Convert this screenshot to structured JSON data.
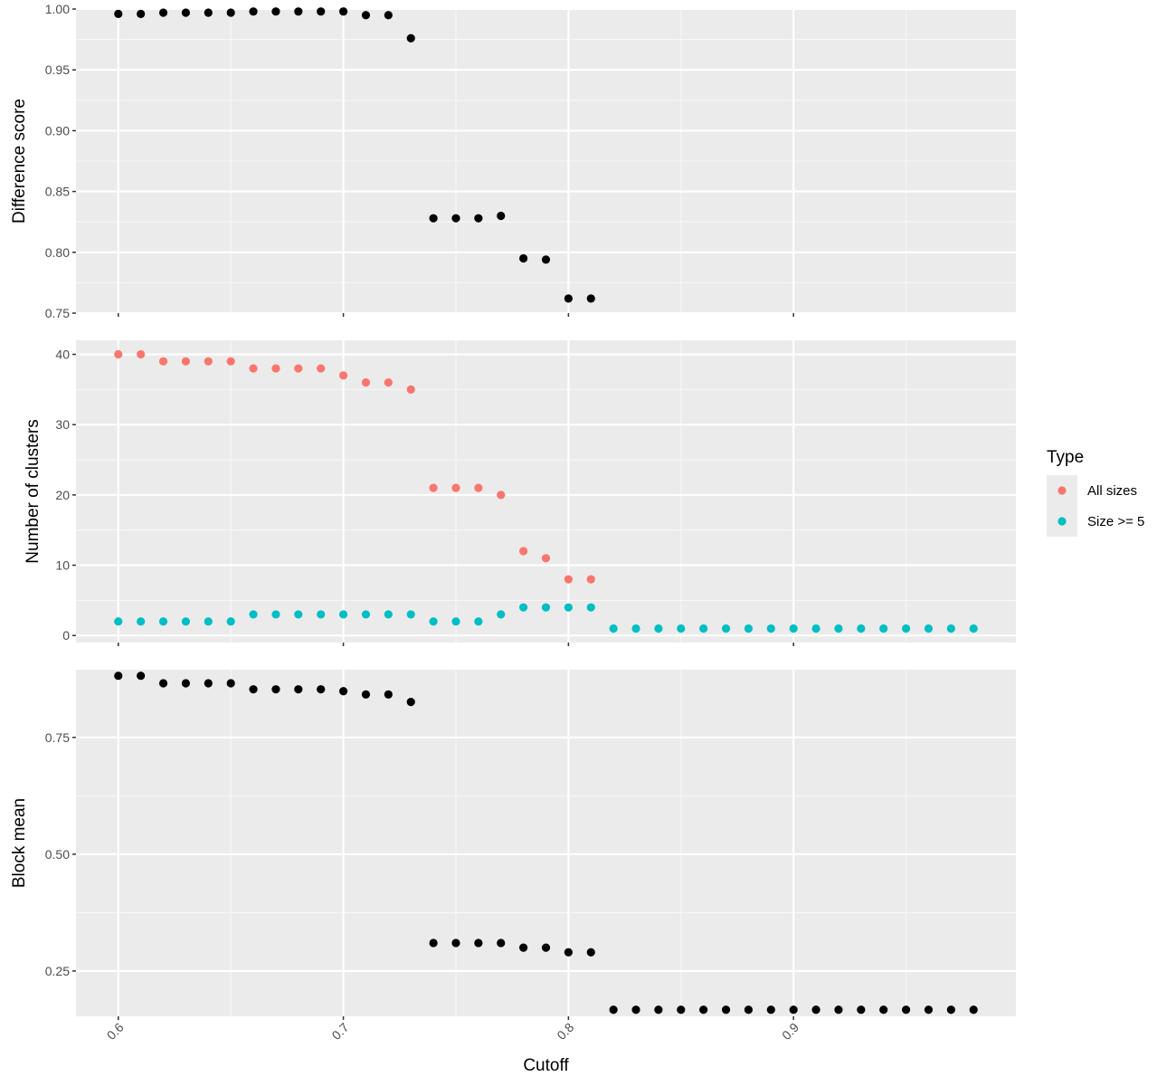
{
  "colors": {
    "panel_background": "#EBEBEB",
    "grid_major": "#FFFFFF",
    "grid_minor": "#F7F7F7",
    "point_default": "#000000",
    "all_sizes": "#F8766D",
    "size_ge_5": "#00BFC4",
    "tick": "#333333",
    "tick_label": "#4D4D4D"
  },
  "chart_data": [
    {
      "type": "scatter",
      "ylabel": "Difference score",
      "ylim": [
        0.75,
        1.0
      ],
      "yticks": [
        0.75,
        0.8,
        0.85,
        0.9,
        0.95,
        1.0
      ],
      "ytick_labels": [
        "0.75",
        "0.80",
        "0.85",
        "0.90",
        "0.95",
        "1.00"
      ],
      "series": [
        {
          "x": [
            0.6,
            0.61,
            0.62,
            0.63,
            0.64,
            0.65,
            0.66,
            0.67,
            0.68,
            0.69,
            0.7,
            0.71,
            0.72,
            0.73,
            0.74,
            0.75,
            0.76,
            0.77,
            0.78,
            0.79,
            0.8,
            0.81
          ],
          "y": [
            0.996,
            0.996,
            0.997,
            0.997,
            0.997,
            0.997,
            0.998,
            0.998,
            0.998,
            0.998,
            0.998,
            0.995,
            0.995,
            0.976,
            0.828,
            0.828,
            0.828,
            0.83,
            0.795,
            0.794,
            0.762,
            0.762
          ]
        }
      ]
    },
    {
      "type": "scatter",
      "ylabel": "Number of clusters",
      "ylim": [
        -1,
        42
      ],
      "yticks": [
        0,
        10,
        20,
        30,
        40
      ],
      "ytick_labels": [
        "0",
        "10",
        "20",
        "30",
        "40"
      ],
      "legend": {
        "title": "Type",
        "position": "right"
      },
      "series": [
        {
          "name": "All sizes",
          "x": [
            0.6,
            0.61,
            0.62,
            0.63,
            0.64,
            0.65,
            0.66,
            0.67,
            0.68,
            0.69,
            0.7,
            0.71,
            0.72,
            0.73,
            0.74,
            0.75,
            0.76,
            0.77,
            0.78,
            0.79,
            0.8,
            0.81
          ],
          "y": [
            40,
            40,
            39,
            39,
            39,
            39,
            38,
            38,
            38,
            38,
            37,
            36,
            36,
            35,
            21,
            21,
            21,
            20,
            12,
            11,
            8,
            8
          ]
        },
        {
          "name": "Size >= 5",
          "x": [
            0.6,
            0.61,
            0.62,
            0.63,
            0.64,
            0.65,
            0.66,
            0.67,
            0.68,
            0.69,
            0.7,
            0.71,
            0.72,
            0.73,
            0.74,
            0.75,
            0.76,
            0.77,
            0.78,
            0.79,
            0.8,
            0.81,
            0.82,
            0.83,
            0.84,
            0.85,
            0.86,
            0.87,
            0.88,
            0.89,
            0.9,
            0.91,
            0.92,
            0.93,
            0.94,
            0.95,
            0.96,
            0.97,
            0.98
          ],
          "y": [
            2,
            2,
            2,
            2,
            2,
            2,
            3,
            3,
            3,
            3,
            3,
            3,
            3,
            3,
            2,
            2,
            2,
            3,
            4,
            4,
            4,
            4,
            1,
            1,
            1,
            1,
            1,
            1,
            1,
            1,
            1,
            1,
            1,
            1,
            1,
            1,
            1,
            1,
            1
          ]
        }
      ]
    },
    {
      "type": "scatter",
      "ylabel": "Block mean",
      "xlabel": "Cutoff",
      "ylim": [
        0.153,
        0.895
      ],
      "yticks": [
        0.25,
        0.5,
        0.75
      ],
      "ytick_labels": [
        "0.25",
        "0.50",
        "0.75"
      ],
      "series": [
        {
          "x": [
            0.6,
            0.61,
            0.62,
            0.63,
            0.64,
            0.65,
            0.66,
            0.67,
            0.68,
            0.69,
            0.7,
            0.71,
            0.72,
            0.73,
            0.74,
            0.75,
            0.76,
            0.77,
            0.78,
            0.79,
            0.8,
            0.81,
            0.82,
            0.83,
            0.84,
            0.85,
            0.86,
            0.87,
            0.88,
            0.89,
            0.9,
            0.91,
            0.92,
            0.93,
            0.94,
            0.95,
            0.96,
            0.97,
            0.98
          ],
          "y": [
            0.882,
            0.882,
            0.866,
            0.866,
            0.866,
            0.866,
            0.853,
            0.853,
            0.853,
            0.853,
            0.849,
            0.842,
            0.842,
            0.826,
            0.31,
            0.31,
            0.31,
            0.31,
            0.3,
            0.3,
            0.29,
            0.29,
            0.167,
            0.167,
            0.167,
            0.167,
            0.167,
            0.167,
            0.167,
            0.167,
            0.167,
            0.167,
            0.167,
            0.167,
            0.167,
            0.167,
            0.167,
            0.167,
            0.167
          ]
        }
      ]
    }
  ],
  "x_axis": {
    "xlim": [
      0.5812,
      0.9988
    ],
    "ticks": [
      0.6,
      0.7,
      0.8,
      0.9
    ],
    "tick_labels": [
      "0.6",
      "0.7",
      "0.8",
      "0.9"
    ],
    "label_rotation": "45 degrees"
  }
}
